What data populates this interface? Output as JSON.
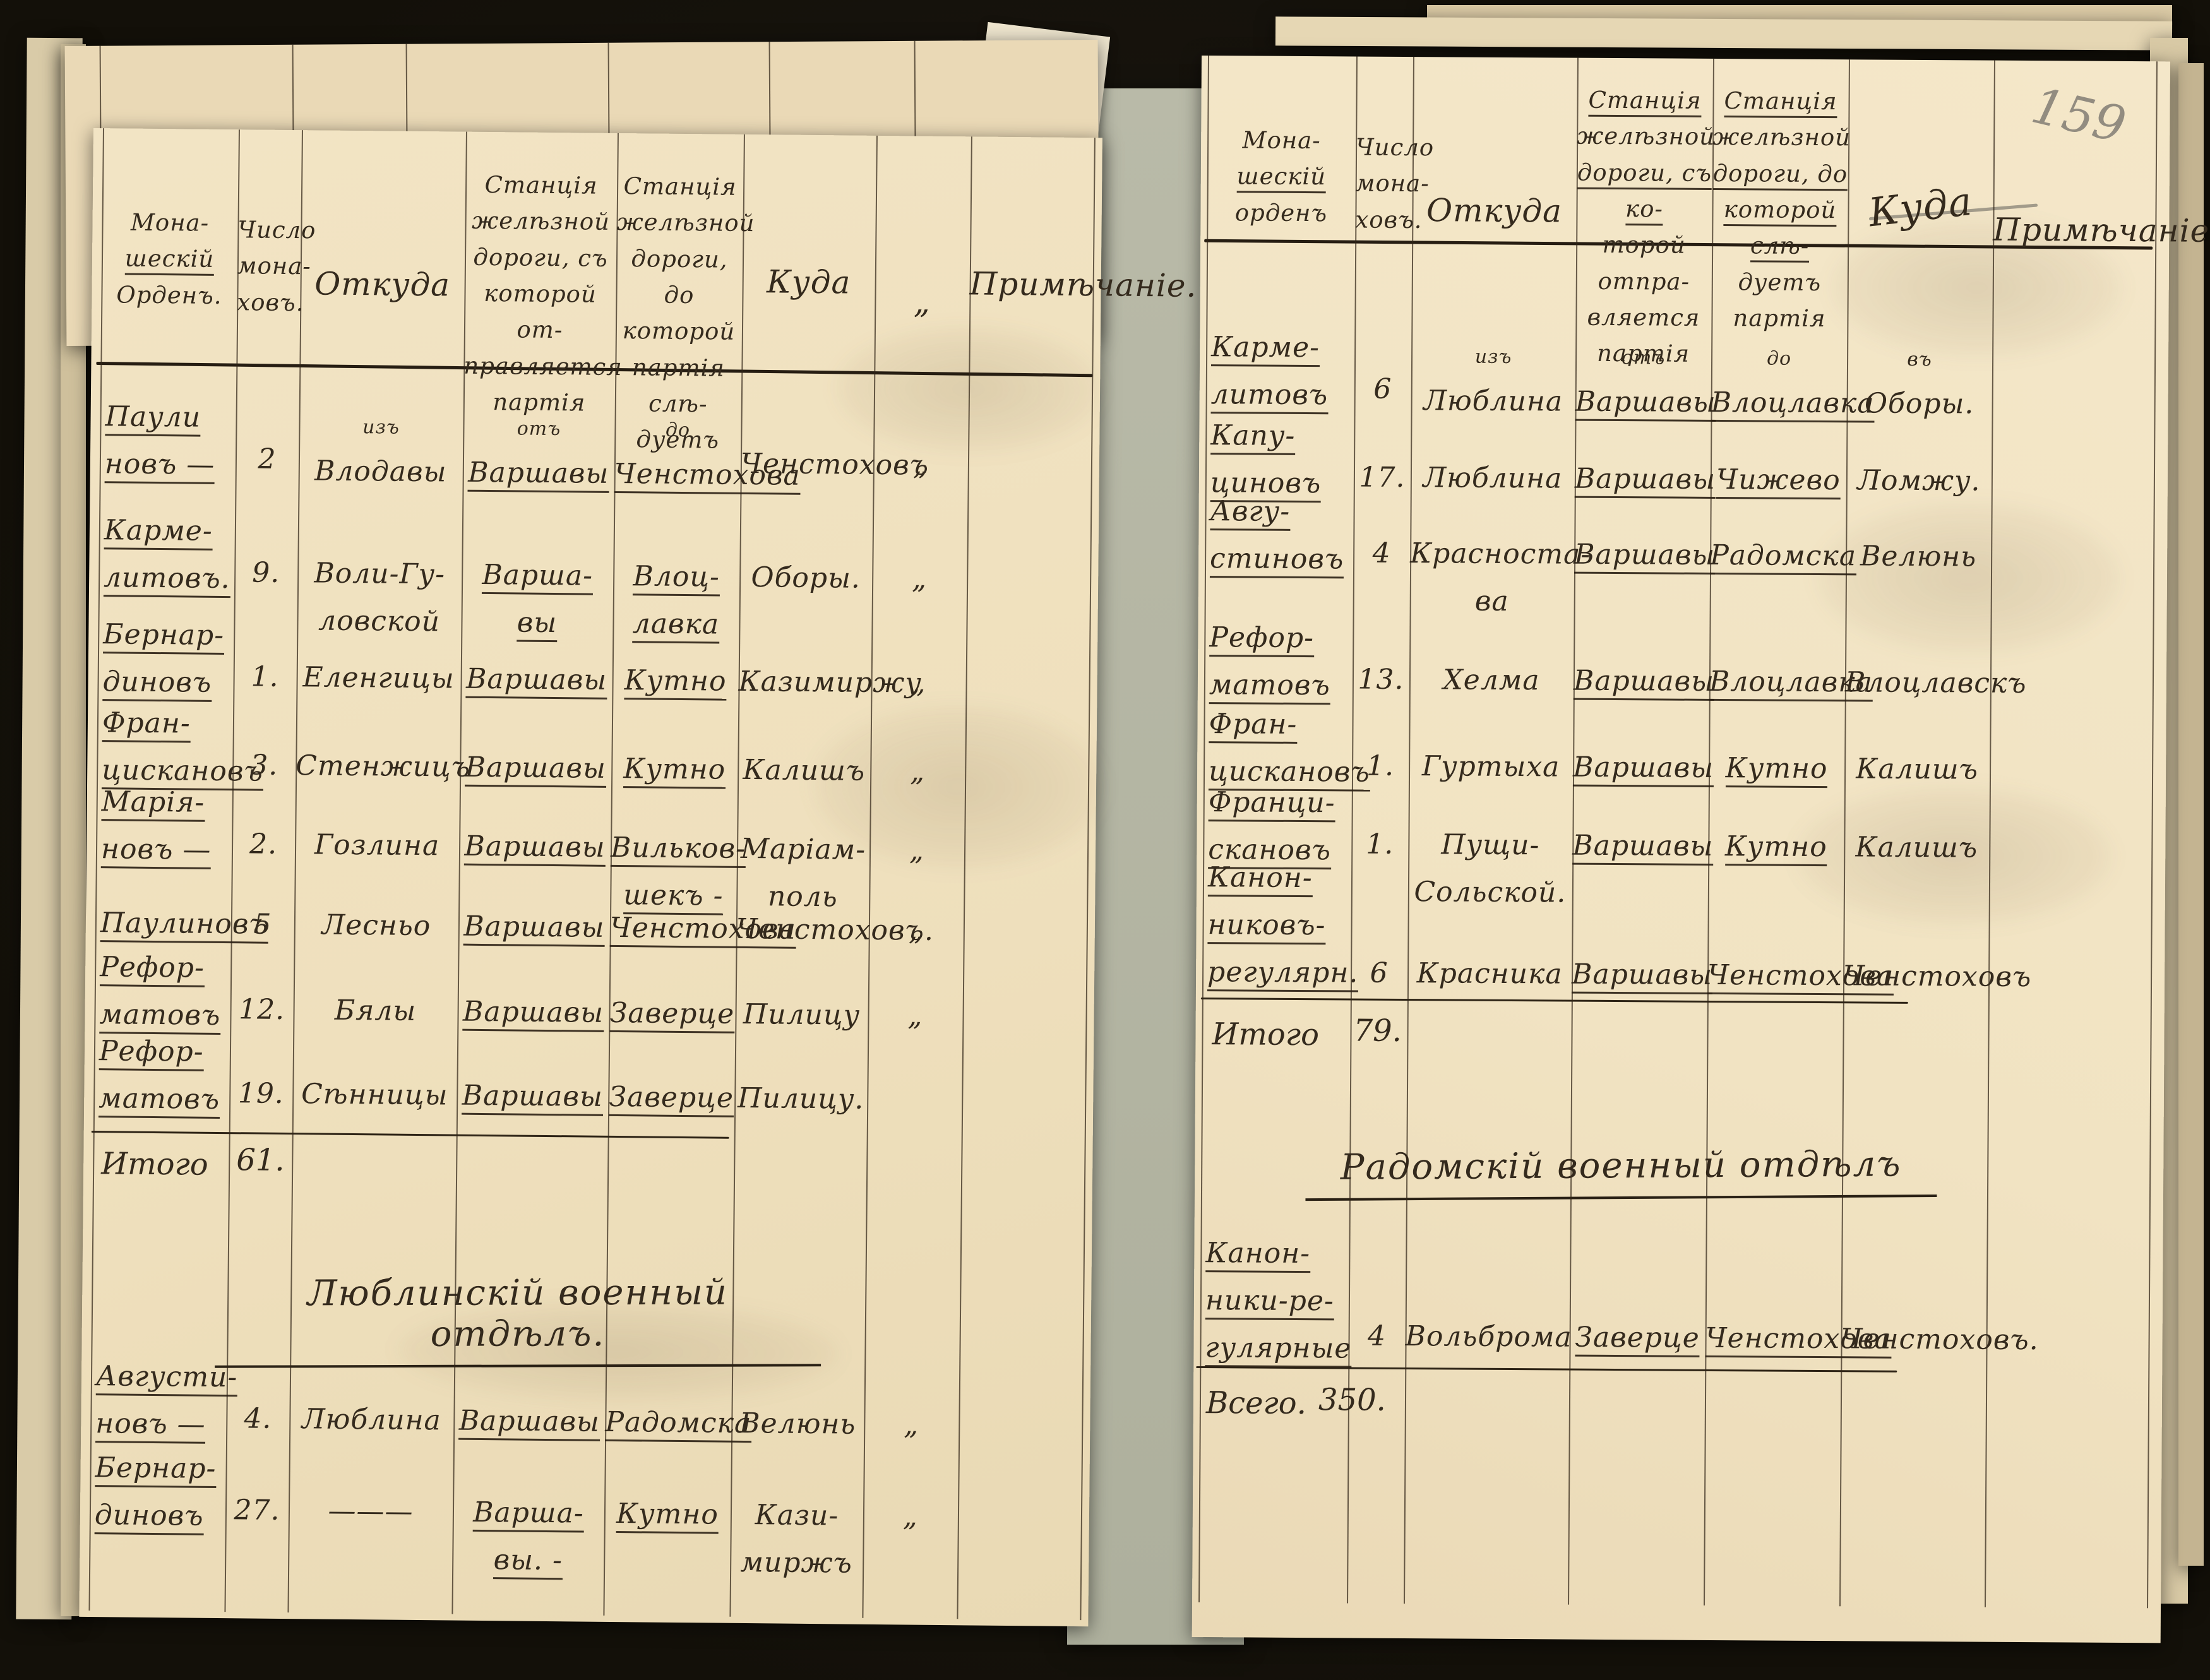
{
  "page_number": "159",
  "ditto": "„",
  "under_page": {
    "col_from": [
      [
        "Станція",
        0
      ],
      [
        "желѣзной",
        0
      ],
      [
        "дороги, съ",
        0
      ]
    ],
    "col_to": [
      [
        "станція",
        0
      ],
      [
        "желѣзной",
        0
      ],
      [
        "дороги, до ко-",
        0
      ]
    ],
    "corner_mark": "№"
  },
  "left_page": {
    "headers": [
      [
        [
          "Мона-",
          0
        ],
        [
          "шескій",
          1
        ],
        [
          "Орденъ.",
          0
        ]
      ],
      [
        [
          "Число",
          0
        ],
        [
          "мона-",
          0
        ],
        [
          "ховъ.",
          0
        ]
      ],
      [
        [
          "Откуда",
          0
        ]
      ],
      [
        [
          "Станція",
          0
        ],
        [
          "желѣзной",
          0
        ],
        [
          "дороги, съ",
          0
        ],
        [
          "которой от-",
          0
        ],
        [
          "правляется",
          0
        ],
        [
          "партія",
          0
        ]
      ],
      [
        [
          "Станція",
          0
        ],
        [
          "желѣзной",
          0
        ],
        [
          "дороги, до",
          0
        ],
        [
          "которой",
          0
        ],
        [
          "партія слѣ-",
          0
        ],
        [
          "дуетъ",
          0
        ]
      ],
      [
        [
          "Куда",
          0
        ]
      ],
      [
        [
          "„",
          0
        ]
      ],
      [
        [
          "Примѣчаніе.",
          0
        ]
      ]
    ],
    "rows": [
      [
        [
          [
            "Паули",
            1
          ],
          [
            "новъ —",
            1
          ]
        ],
        [
          [
            "2",
            0
          ]
        ],
        [
          [
            "изъ",
            2
          ],
          [
            "Влодавы",
            0
          ]
        ],
        [
          [
            "отъ",
            2
          ],
          [
            "Варшавы",
            1
          ]
        ],
        [
          [
            "до",
            2
          ],
          [
            "Ченстохова",
            1
          ]
        ],
        [
          [
            "Ченстоховъ",
            0
          ]
        ],
        [
          [
            "„",
            0
          ]
        ],
        []
      ],
      [
        [
          [
            "Карме-",
            1
          ],
          [
            "литовъ.",
            1
          ]
        ],
        [
          [
            "9.",
            0
          ]
        ],
        [
          [
            "Воли-Гу-",
            0
          ],
          [
            "ловской",
            0
          ]
        ],
        [
          [
            "Варша-",
            1
          ],
          [
            "вы",
            1
          ]
        ],
        [
          [
            "Влоц-",
            1
          ],
          [
            "лавка",
            1
          ]
        ],
        [
          [
            "Оборы.",
            0
          ]
        ],
        [
          [
            "„",
            0
          ]
        ],
        []
      ],
      [
        [
          [
            "Бернар-",
            1
          ],
          [
            "диновъ",
            1
          ]
        ],
        [
          [
            "1.",
            0
          ]
        ],
        [
          [
            "Еленгицы",
            0
          ]
        ],
        [
          [
            "Варшавы",
            1
          ]
        ],
        [
          [
            "Кутно",
            1
          ]
        ],
        [
          [
            "Казимиржу",
            0
          ]
        ],
        [
          [
            "„",
            0
          ]
        ],
        []
      ],
      [
        [
          [
            "Фран-",
            1
          ],
          [
            "цискановъ",
            1
          ]
        ],
        [
          [
            "3.",
            0
          ]
        ],
        [
          [
            "Стенжицъ",
            0
          ]
        ],
        [
          [
            "Варшавы",
            1
          ]
        ],
        [
          [
            "Кутно",
            1
          ]
        ],
        [
          [
            "Калишъ",
            0
          ]
        ],
        [
          [
            "„",
            0
          ]
        ],
        []
      ],
      [
        [
          [
            "Марія-",
            1
          ],
          [
            "новъ —",
            1
          ]
        ],
        [
          [
            "2.",
            0
          ]
        ],
        [
          [
            "Гозлина",
            0
          ]
        ],
        [
          [
            "Варшавы",
            1
          ]
        ],
        [
          [
            "Вильков-",
            1
          ],
          [
            "шекъ -",
            1
          ]
        ],
        [
          [
            "Маріам-",
            0
          ],
          [
            "поль",
            0
          ]
        ],
        [
          [
            "„",
            0
          ]
        ],
        []
      ],
      [
        [
          [
            "Паулиновъ",
            1
          ]
        ],
        [
          [
            "5",
            0
          ]
        ],
        [
          [
            "Лесньо",
            0
          ]
        ],
        [
          [
            "Варшавы",
            1
          ]
        ],
        [
          [
            "Ченстохова",
            1
          ]
        ],
        [
          [
            "Ченстоховъ.",
            0
          ]
        ],
        [
          [
            "„",
            0
          ]
        ],
        []
      ],
      [
        [
          [
            "Рефор-",
            1
          ],
          [
            "матовъ",
            1
          ]
        ],
        [
          [
            "12.",
            0
          ]
        ],
        [
          [
            "Бялы",
            0
          ]
        ],
        [
          [
            "Варшавы",
            1
          ]
        ],
        [
          [
            "Заверце",
            1
          ]
        ],
        [
          [
            "Пилицу",
            0
          ]
        ],
        [
          [
            "„",
            0
          ]
        ],
        []
      ],
      [
        [
          [
            "Рефор-",
            1
          ],
          [
            "матовъ",
            1
          ]
        ],
        [
          [
            "19.",
            0
          ]
        ],
        [
          [
            "Сѣнницы",
            0
          ]
        ],
        [
          [
            "Варшавы",
            1
          ]
        ],
        [
          [
            "Заверце",
            1
          ]
        ],
        [
          [
            "Пилицу.",
            0
          ]
        ],
        [],
        []
      ],
      [
        [
          [
            "Августи-",
            1
          ],
          [
            "новъ —",
            1
          ]
        ],
        [
          [
            "4.",
            0
          ]
        ],
        [
          [
            "Люблина",
            0
          ]
        ],
        [
          [
            "Варшавы",
            1
          ]
        ],
        [
          [
            "Радомска",
            1
          ]
        ],
        [
          [
            "Велюнь",
            0
          ]
        ],
        [
          [
            "„",
            0
          ]
        ],
        []
      ],
      [
        [
          [
            "Бернар-",
            1
          ],
          [
            "диновъ",
            1
          ]
        ],
        [
          [
            "27.",
            0
          ]
        ],
        [
          [
            "———",
            0
          ]
        ],
        [
          [
            "Варша-",
            1
          ],
          [
            "вы. -",
            1
          ]
        ],
        [
          [
            "Кутно",
            1
          ]
        ],
        [
          [
            "Кази-",
            0
          ],
          [
            "миржъ",
            0
          ]
        ],
        [
          [
            "„",
            0
          ]
        ],
        []
      ]
    ],
    "total_label": "Итого",
    "total_value": "61.",
    "section_title": "Люблинскій военный отдѣлъ."
  },
  "right_page": {
    "headers": [
      [
        [
          "Мона-",
          0
        ],
        [
          "шескій",
          1
        ],
        [
          "орденъ",
          0
        ]
      ],
      [
        [
          "Число",
          0
        ],
        [
          "мона-",
          0
        ],
        [
          "ховъ.",
          0
        ]
      ],
      [
        [
          "Откуда",
          0
        ]
      ],
      [
        [
          "Станція",
          1
        ],
        [
          "желѣзной",
          0
        ],
        [
          "дороги, съ ко-",
          1
        ],
        [
          "торой отпра-",
          0
        ],
        [
          "вляется",
          0
        ],
        [
          "партія",
          0
        ]
      ],
      [
        [
          "Станція",
          1
        ],
        [
          "желѣзной",
          0
        ],
        [
          "дороги, до",
          1
        ],
        [
          "которой слѣ-",
          1
        ],
        [
          "дуетъ партія",
          0
        ]
      ],
      [
        [
          "Куда",
          0
        ]
      ],
      [
        [
          "Примѣчаніе",
          0
        ]
      ]
    ],
    "rows": [
      [
        [
          [
            "Карме-",
            1
          ],
          [
            "литовъ",
            1
          ]
        ],
        [
          [
            "6",
            0
          ]
        ],
        [
          [
            "изъ",
            2
          ],
          [
            "Люблина",
            0
          ]
        ],
        [
          [
            "отъ",
            2
          ],
          [
            "Варшавы",
            1
          ]
        ],
        [
          [
            "до",
            2
          ],
          [
            "Влоцлавка",
            1
          ]
        ],
        [
          [
            "въ",
            2
          ],
          [
            "Оборы.",
            0
          ]
        ],
        []
      ],
      [
        [
          [
            "Капу-",
            1
          ],
          [
            "циновъ",
            1
          ]
        ],
        [
          [
            "17.",
            0
          ]
        ],
        [
          [
            "Люблина",
            0
          ]
        ],
        [
          [
            "Варшавы",
            1
          ]
        ],
        [
          [
            "Чижево",
            1
          ]
        ],
        [
          [
            "Ломжу.",
            0
          ]
        ],
        []
      ],
      [
        [
          [
            "Авгу-",
            1
          ],
          [
            "стиновъ",
            1
          ]
        ],
        [
          [
            "4",
            0
          ]
        ],
        [
          [
            "Красноста-",
            0
          ],
          [
            "ва",
            0
          ]
        ],
        [
          [
            "Варшавы",
            1
          ]
        ],
        [
          [
            "Радомска",
            1
          ]
        ],
        [
          [
            "Велюнь",
            0
          ]
        ],
        []
      ],
      [
        [
          [
            "Рефор-",
            1
          ],
          [
            "матовъ",
            1
          ]
        ],
        [
          [
            "13.",
            0
          ]
        ],
        [
          [
            "Хелма",
            0
          ]
        ],
        [
          [
            "Варшавы",
            1
          ]
        ],
        [
          [
            "Влоцлавка",
            1
          ]
        ],
        [
          [
            "Влоцлавскъ",
            0
          ]
        ],
        []
      ],
      [
        [
          [
            "Фран-",
            1
          ],
          [
            "цискановъ",
            1
          ]
        ],
        [
          [
            "1.",
            0
          ]
        ],
        [
          [
            "Гуртыха",
            0
          ]
        ],
        [
          [
            "Варшавы",
            1
          ]
        ],
        [
          [
            "Кутно",
            1
          ]
        ],
        [
          [
            "Калишъ",
            0
          ]
        ],
        []
      ],
      [
        [
          [
            "Франци-",
            1
          ],
          [
            "скановъ",
            1
          ]
        ],
        [
          [
            "1.",
            0
          ]
        ],
        [
          [
            "Пущи-",
            0
          ],
          [
            "Сольской.",
            0
          ]
        ],
        [
          [
            "Варшавы",
            1
          ]
        ],
        [
          [
            "Кутно",
            1
          ]
        ],
        [
          [
            "Калишъ",
            0
          ]
        ],
        []
      ],
      [
        [
          [
            "Канон-",
            1
          ],
          [
            "никовъ-",
            1
          ],
          [
            "регулярн.",
            1
          ]
        ],
        [
          [
            "6",
            0
          ]
        ],
        [
          [
            "Красника",
            0
          ]
        ],
        [
          [
            "Варшавы",
            1
          ]
        ],
        [
          [
            "Ченстохова",
            1
          ]
        ],
        [
          [
            "Ченстоховъ",
            0
          ]
        ],
        []
      ],
      [
        [
          [
            "Канон-",
            1
          ],
          [
            "ники-ре-",
            1
          ],
          [
            "гулярные",
            1
          ]
        ],
        [
          [
            "4",
            0
          ]
        ],
        [
          [
            "Вольброма",
            0
          ]
        ],
        [
          [
            "Заверце",
            1
          ]
        ],
        [
          [
            "Ченстохова",
            1
          ]
        ],
        [
          [
            "Ченстоховъ.",
            0
          ]
        ],
        []
      ]
    ],
    "total_label": "Итого",
    "total_value": "79.",
    "section_title": "Радомскій военный отдѣлъ",
    "grand_total_label": "Всего.",
    "grand_total_value": "350."
  }
}
